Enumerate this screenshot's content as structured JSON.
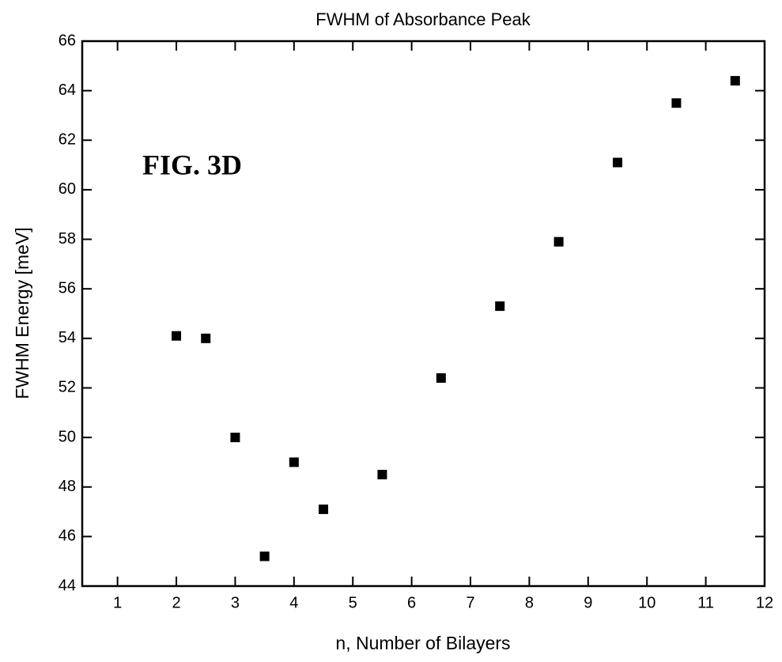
{
  "chart_data": {
    "type": "scatter",
    "title": "FWHM of Absorbance Peak",
    "xlabel": "n, Number of Bilayers",
    "ylabel": "FWHM Energy [meV]",
    "annotation": "FIG. 3D",
    "x": [
      2,
      2.5,
      3,
      3.5,
      4,
      4.5,
      5.5,
      6.5,
      7.5,
      8.5,
      9.5,
      10.5,
      11.5
    ],
    "values": [
      54.1,
      54.0,
      50.0,
      45.2,
      49.0,
      47.1,
      48.5,
      52.4,
      55.3,
      57.9,
      61.1,
      63.5,
      64.4
    ],
    "color": "#000000",
    "xlim": [
      0.4,
      12
    ],
    "xticks": [
      1,
      2,
      3,
      4,
      5,
      6,
      7,
      8,
      9,
      10,
      11,
      12
    ],
    "ylim": [
      44,
      66
    ],
    "yticks": [
      44,
      46,
      48,
      50,
      52,
      54,
      56,
      58,
      60,
      62,
      64,
      66
    ],
    "grid": false
  }
}
